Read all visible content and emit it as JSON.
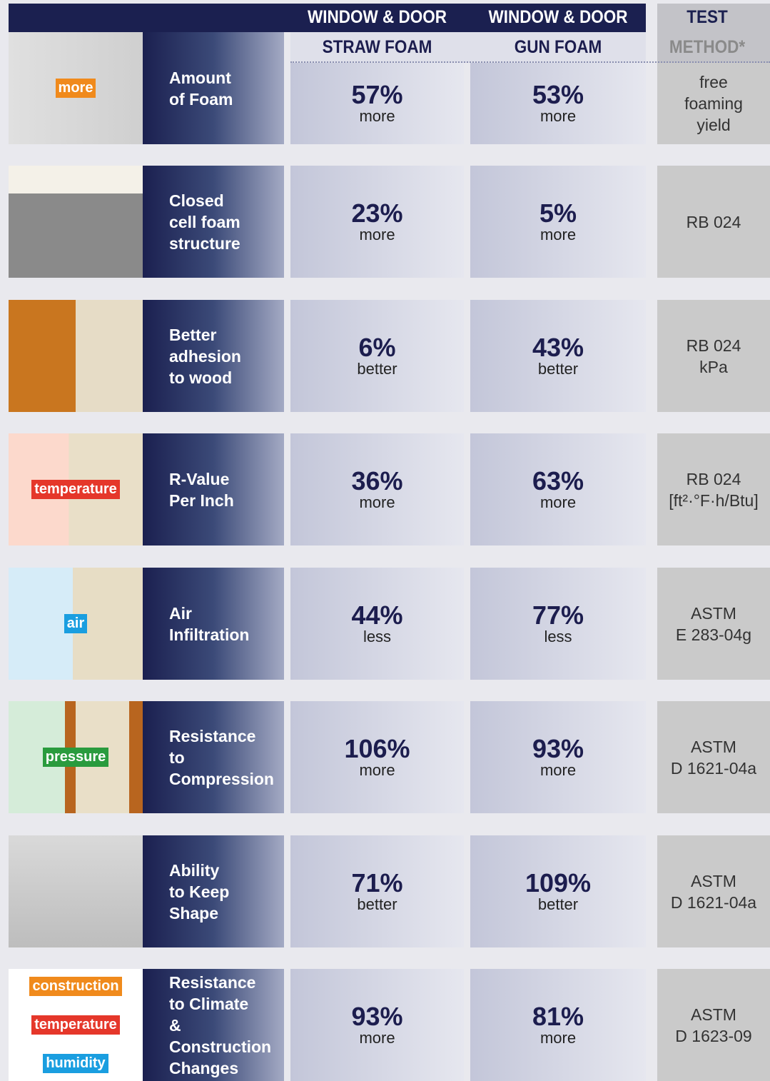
{
  "header": {
    "straw": [
      "WINDOW & DOOR",
      "STRAW FOAM"
    ],
    "gun": [
      "WINDOW & DOOR",
      "GUN FOAM"
    ],
    "method": [
      "TEST",
      "METHOD*"
    ]
  },
  "rows": [
    {
      "icon_text": [
        "more"
      ],
      "label": [
        "Amount",
        "of Foam"
      ],
      "straw": [
        "57%",
        "more"
      ],
      "gun": [
        "53%",
        "more"
      ],
      "method": [
        "free",
        "foaming",
        "yield"
      ]
    },
    {
      "label": [
        "Closed",
        "cell foam",
        "structure"
      ],
      "straw": [
        "23%",
        "more"
      ],
      "gun": [
        "5%",
        "more"
      ],
      "method": [
        "RB 024"
      ]
    },
    {
      "label": [
        "Better",
        "adhesion",
        "to wood"
      ],
      "straw": [
        "6%",
        "better"
      ],
      "gun": [
        "43%",
        "better"
      ],
      "method": [
        "RB 024",
        "kPa"
      ]
    },
    {
      "icon_text": [
        "temperature"
      ],
      "label": [
        "R-Value",
        "Per Inch"
      ],
      "straw": [
        "36%",
        "more"
      ],
      "gun": [
        "63%",
        "more"
      ],
      "method": [
        "RB 024",
        "[ft²·°F·h/Btu]"
      ]
    },
    {
      "icon_text": [
        "air"
      ],
      "label": [
        "Air",
        "Infiltration"
      ],
      "straw": [
        "44%",
        "less"
      ],
      "gun": [
        "77%",
        "less"
      ],
      "method": [
        "ASTM",
        "E 283-04g"
      ]
    },
    {
      "icon_text": [
        "pressure"
      ],
      "label": [
        "Resistance",
        "to",
        "Compression"
      ],
      "straw": [
        "106%",
        "more"
      ],
      "gun": [
        "93%",
        "more"
      ],
      "method": [
        "ASTM",
        "D 1621-04a"
      ]
    },
    {
      "label": [
        "Ability",
        "to Keep",
        "Shape"
      ],
      "straw": [
        "71%",
        "better"
      ],
      "gun": [
        "109%",
        "better"
      ],
      "method": [
        "ASTM",
        "D 1621-04a"
      ]
    },
    {
      "icon_text": [
        "construction",
        "temperature",
        "humidity"
      ],
      "label": [
        "Resistance",
        "to Climate",
        "& Construction",
        "Changes"
      ],
      "straw": [
        "93%",
        "more"
      ],
      "gun": [
        "81%",
        "more"
      ],
      "method": [
        "ASTM",
        "D 1623-09"
      ]
    }
  ]
}
